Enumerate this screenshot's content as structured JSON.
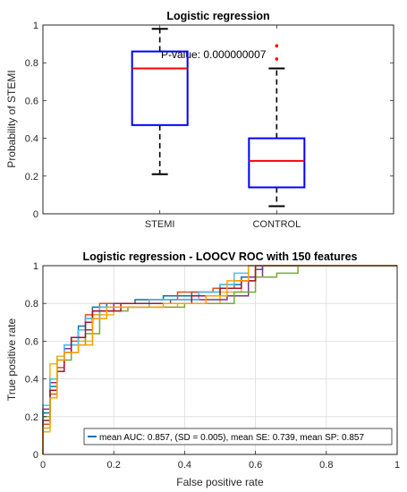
{
  "chart_data": [
    {
      "type": "box",
      "title": "Logistic regression",
      "xlabel": "",
      "ylabel": "Probability of STEMI",
      "ylim": [
        0,
        1
      ],
      "yticks": [
        "0",
        "0.2",
        "0.4",
        "0.6",
        "0.8",
        "1"
      ],
      "categories": [
        "STEMI",
        "CONTROL"
      ],
      "boxes": [
        {
          "whisker_low": 0.21,
          "q1": 0.47,
          "median": 0.77,
          "q3": 0.86,
          "whisker_high": 0.98,
          "outliers": []
        },
        {
          "whisker_low": 0.04,
          "q1": 0.14,
          "median": 0.28,
          "q3": 0.4,
          "whisker_high": 0.77,
          "outliers": [
            0.82,
            0.89
          ]
        }
      ],
      "annotation": "P-value: 0.000000007",
      "colors": {
        "box": "#0000ff",
        "median": "#ff0000",
        "whisker": "#000000",
        "outlier": "#ff0000"
      }
    },
    {
      "type": "line",
      "title": "Logistic regression - LOOCV ROC with 150 features",
      "xlabel": "False positive rate",
      "ylabel": "True positive rate",
      "xlim": [
        0,
        1
      ],
      "ylim": [
        0,
        1
      ],
      "xticks": [
        "0",
        "0.2",
        "0.4",
        "0.6",
        "0.8",
        "1"
      ],
      "yticks": [
        "0",
        "0.2",
        "0.4",
        "0.6",
        "0.8",
        "1"
      ],
      "grid": true,
      "legend": {
        "label": "mean AUC: 0.857, (SD = 0.005), mean SE: 0.739, mean SP: 0.857",
        "placement": "bottom-right"
      },
      "series": [
        {
          "color": "#0072bd",
          "x": [
            0,
            0,
            0.02,
            0.02,
            0.04,
            0.04,
            0.06,
            0.06,
            0.08,
            0.08,
            0.1,
            0.1,
            0.12,
            0.12,
            0.14,
            0.14,
            0.18,
            0.18,
            0.26,
            0.26,
            0.34,
            0.34,
            0.42,
            0.42,
            0.5,
            0.5,
            0.56,
            0.56,
            0.6,
            0.6,
            0.62,
            0.62,
            1
          ],
          "y": [
            0,
            0.22,
            0.22,
            0.36,
            0.36,
            0.52,
            0.52,
            0.58,
            0.58,
            0.62,
            0.62,
            0.68,
            0.68,
            0.72,
            0.72,
            0.78,
            0.78,
            0.8,
            0.8,
            0.82,
            0.82,
            0.84,
            0.84,
            0.86,
            0.86,
            0.9,
            0.9,
            0.94,
            0.94,
            0.98,
            0.98,
            1,
            1
          ]
        },
        {
          "color": "#d95319",
          "x": [
            0,
            0,
            0.02,
            0.02,
            0.04,
            0.04,
            0.06,
            0.06,
            0.08,
            0.08,
            0.1,
            0.1,
            0.12,
            0.12,
            0.16,
            0.16,
            0.3,
            0.3,
            0.38,
            0.38,
            0.48,
            0.48,
            0.54,
            0.54,
            0.6,
            0.6,
            1
          ],
          "y": [
            0,
            0.16,
            0.16,
            0.32,
            0.32,
            0.46,
            0.46,
            0.56,
            0.56,
            0.6,
            0.6,
            0.66,
            0.66,
            0.74,
            0.74,
            0.8,
            0.8,
            0.82,
            0.82,
            0.86,
            0.86,
            0.88,
            0.88,
            0.92,
            0.92,
            1,
            1
          ]
        },
        {
          "color": "#edb120",
          "x": [
            0,
            0,
            0.02,
            0.02,
            0.04,
            0.04,
            0.06,
            0.06,
            0.1,
            0.1,
            0.14,
            0.14,
            0.2,
            0.2,
            0.38,
            0.38,
            0.5,
            0.5,
            0.56,
            0.56,
            0.6,
            0.6,
            1
          ],
          "y": [
            0,
            0.12,
            0.12,
            0.48,
            0.48,
            0.52,
            0.52,
            0.54,
            0.54,
            0.6,
            0.6,
            0.74,
            0.74,
            0.78,
            0.78,
            0.8,
            0.8,
            0.86,
            0.86,
            0.92,
            0.92,
            1,
            1
          ]
        },
        {
          "color": "#7e2f8e",
          "x": [
            0,
            0,
            0.02,
            0.02,
            0.04,
            0.04,
            0.06,
            0.06,
            0.08,
            0.08,
            0.1,
            0.1,
            0.14,
            0.14,
            0.2,
            0.2,
            0.36,
            0.36,
            0.52,
            0.52,
            0.58,
            0.58,
            0.62,
            0.62,
            1
          ],
          "y": [
            0,
            0.24,
            0.24,
            0.38,
            0.38,
            0.5,
            0.5,
            0.56,
            0.56,
            0.62,
            0.62,
            0.66,
            0.66,
            0.76,
            0.76,
            0.8,
            0.8,
            0.82,
            0.82,
            0.84,
            0.84,
            0.94,
            0.94,
            1,
            1
          ]
        },
        {
          "color": "#77ac30",
          "x": [
            0,
            0,
            0.02,
            0.02,
            0.04,
            0.04,
            0.08,
            0.08,
            0.12,
            0.12,
            0.16,
            0.16,
            0.24,
            0.24,
            0.4,
            0.4,
            0.54,
            0.54,
            0.6,
            0.6,
            0.66,
            0.66,
            0.72,
            0.72,
            1
          ],
          "y": [
            0,
            0.2,
            0.2,
            0.4,
            0.4,
            0.5,
            0.5,
            0.58,
            0.58,
            0.64,
            0.64,
            0.76,
            0.76,
            0.78,
            0.78,
            0.8,
            0.8,
            0.86,
            0.86,
            0.94,
            0.94,
            0.96,
            0.96,
            1,
            1
          ]
        },
        {
          "color": "#4dbeee",
          "x": [
            0,
            0,
            0.02,
            0.02,
            0.04,
            0.04,
            0.06,
            0.06,
            0.1,
            0.1,
            0.12,
            0.12,
            0.16,
            0.16,
            0.3,
            0.3,
            0.44,
            0.44,
            0.5,
            0.5,
            0.54,
            0.54,
            0.58,
            0.58,
            1
          ],
          "y": [
            0,
            0.26,
            0.26,
            0.4,
            0.4,
            0.5,
            0.5,
            0.58,
            0.58,
            0.66,
            0.66,
            0.72,
            0.72,
            0.78,
            0.78,
            0.82,
            0.82,
            0.86,
            0.86,
            0.9,
            0.9,
            0.96,
            0.96,
            1,
            1
          ]
        },
        {
          "color": "#a2142f",
          "x": [
            0,
            0,
            0.02,
            0.02,
            0.04,
            0.04,
            0.06,
            0.06,
            0.08,
            0.08,
            0.12,
            0.12,
            0.14,
            0.14,
            0.22,
            0.22,
            0.42,
            0.42,
            0.5,
            0.5,
            0.56,
            0.56,
            0.6,
            0.6,
            1
          ],
          "y": [
            0,
            0.18,
            0.18,
            0.34,
            0.34,
            0.44,
            0.44,
            0.54,
            0.54,
            0.62,
            0.62,
            0.7,
            0.7,
            0.76,
            0.76,
            0.8,
            0.8,
            0.84,
            0.84,
            0.88,
            0.88,
            0.92,
            0.92,
            1,
            1
          ]
        },
        {
          "color": "#ffa000",
          "x": [
            0,
            0,
            0.02,
            0.02,
            0.04,
            0.04,
            0.06,
            0.06,
            0.1,
            0.1,
            0.14,
            0.14,
            0.18,
            0.18,
            0.34,
            0.34,
            0.46,
            0.46,
            0.52,
            0.52,
            0.58,
            0.58,
            1
          ],
          "y": [
            0,
            0.14,
            0.14,
            0.3,
            0.3,
            0.5,
            0.5,
            0.54,
            0.54,
            0.58,
            0.58,
            0.72,
            0.72,
            0.78,
            0.78,
            0.8,
            0.8,
            0.84,
            0.84,
            0.92,
            0.92,
            1,
            1
          ]
        }
      ]
    }
  ]
}
